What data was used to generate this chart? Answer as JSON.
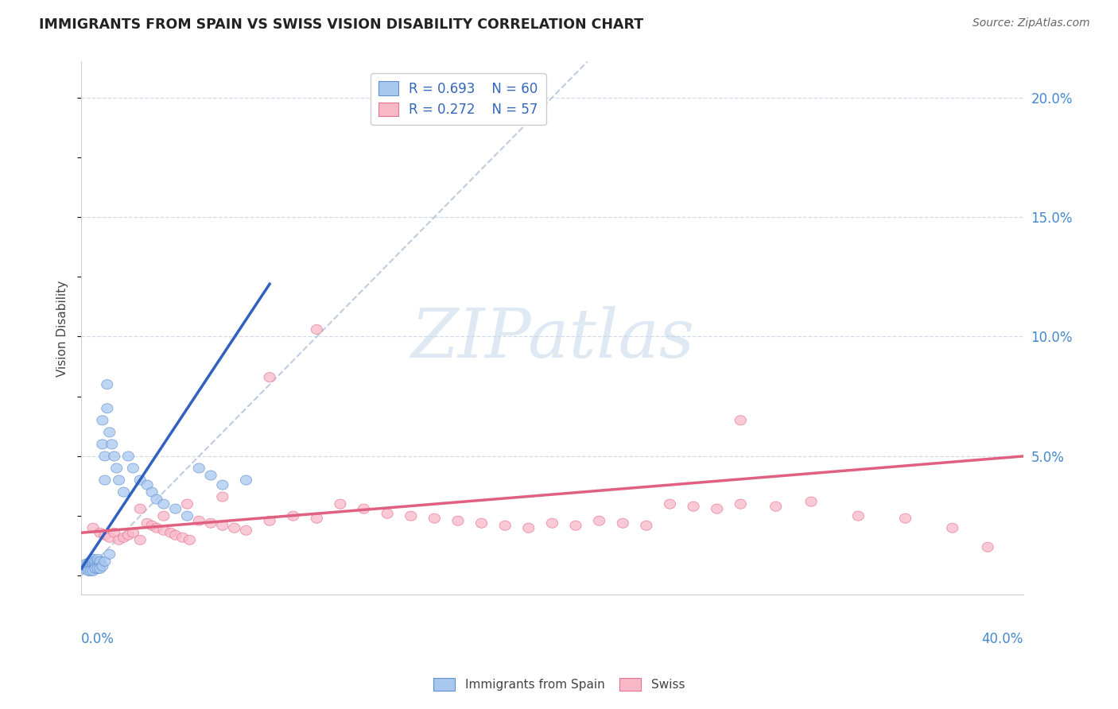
{
  "title": "IMMIGRANTS FROM SPAIN VS SWISS VISION DISABILITY CORRELATION CHART",
  "source": "Source: ZipAtlas.com",
  "ylabel": "Vision Disability",
  "ylabel_right_labels": [
    "20.0%",
    "15.0%",
    "10.0%",
    "5.0%"
  ],
  "ylabel_right_values": [
    0.2,
    0.15,
    0.1,
    0.05
  ],
  "xmin": 0.0,
  "xmax": 0.4,
  "ymin": -0.008,
  "ymax": 0.215,
  "legend_r1": "R = 0.693",
  "legend_n1": "N = 60",
  "legend_r2": "R = 0.272",
  "legend_n2": "N = 57",
  "color_blue_fill": "#A8C8F0",
  "color_blue_edge": "#6090D0",
  "color_pink_fill": "#F8B8C8",
  "color_pink_edge": "#E87090",
  "color_blue_line": "#3060C0",
  "color_pink_line": "#E06080",
  "color_dashed": "#B0C0D8",
  "color_title": "#222222",
  "color_axis_label": "#444444",
  "color_right_label": "#4488CC",
  "color_legend_text_r": "#3366BB",
  "color_legend_text_n": "#33AA33",
  "color_source": "#666666",
  "color_grid": "#D0DDE8",
  "watermark_text": "ZIPatlas",
  "watermark_color": "#C0D4E8",
  "background_color": "#FFFFFF",
  "blue_x": [
    0.001,
    0.002,
    0.002,
    0.003,
    0.003,
    0.003,
    0.004,
    0.004,
    0.004,
    0.004,
    0.005,
    0.005,
    0.005,
    0.005,
    0.005,
    0.006,
    0.006,
    0.006,
    0.006,
    0.007,
    0.007,
    0.007,
    0.007,
    0.008,
    0.008,
    0.008,
    0.009,
    0.009,
    0.01,
    0.01,
    0.011,
    0.011,
    0.012,
    0.013,
    0.014,
    0.015,
    0.016,
    0.018,
    0.02,
    0.022,
    0.025,
    0.028,
    0.03,
    0.032,
    0.035,
    0.04,
    0.045,
    0.05,
    0.055,
    0.06,
    0.003,
    0.004,
    0.005,
    0.006,
    0.007,
    0.008,
    0.009,
    0.01,
    0.012,
    0.07
  ],
  "blue_y": [
    0.003,
    0.004,
    0.005,
    0.003,
    0.004,
    0.005,
    0.003,
    0.004,
    0.005,
    0.006,
    0.003,
    0.004,
    0.005,
    0.006,
    0.007,
    0.003,
    0.004,
    0.005,
    0.006,
    0.004,
    0.005,
    0.006,
    0.007,
    0.004,
    0.005,
    0.006,
    0.055,
    0.065,
    0.04,
    0.05,
    0.07,
    0.08,
    0.06,
    0.055,
    0.05,
    0.045,
    0.04,
    0.035,
    0.05,
    0.045,
    0.04,
    0.038,
    0.035,
    0.032,
    0.03,
    0.028,
    0.025,
    0.045,
    0.042,
    0.038,
    0.002,
    0.002,
    0.002,
    0.003,
    0.003,
    0.003,
    0.004,
    0.006,
    0.009,
    0.04
  ],
  "pink_x": [
    0.005,
    0.008,
    0.01,
    0.012,
    0.014,
    0.016,
    0.018,
    0.02,
    0.022,
    0.025,
    0.028,
    0.03,
    0.032,
    0.035,
    0.038,
    0.04,
    0.043,
    0.046,
    0.05,
    0.055,
    0.06,
    0.065,
    0.07,
    0.08,
    0.09,
    0.1,
    0.11,
    0.12,
    0.13,
    0.14,
    0.15,
    0.16,
    0.17,
    0.18,
    0.19,
    0.2,
    0.21,
    0.22,
    0.23,
    0.24,
    0.25,
    0.26,
    0.27,
    0.28,
    0.295,
    0.31,
    0.33,
    0.35,
    0.37,
    0.385,
    0.025,
    0.035,
    0.045,
    0.06,
    0.08,
    0.1,
    0.28
  ],
  "pink_y": [
    0.02,
    0.018,
    0.017,
    0.016,
    0.018,
    0.015,
    0.016,
    0.017,
    0.018,
    0.015,
    0.022,
    0.021,
    0.02,
    0.019,
    0.018,
    0.017,
    0.016,
    0.015,
    0.023,
    0.022,
    0.021,
    0.02,
    0.019,
    0.023,
    0.025,
    0.024,
    0.03,
    0.028,
    0.026,
    0.025,
    0.024,
    0.023,
    0.022,
    0.021,
    0.02,
    0.022,
    0.021,
    0.023,
    0.022,
    0.021,
    0.03,
    0.029,
    0.028,
    0.03,
    0.029,
    0.031,
    0.025,
    0.024,
    0.02,
    0.012,
    0.028,
    0.025,
    0.03,
    0.033,
    0.083,
    0.103,
    0.065
  ],
  "blue_line_x": [
    0.0,
    0.08
  ],
  "blue_line_y": [
    0.003,
    0.122
  ],
  "pink_line_x": [
    0.0,
    0.4
  ],
  "pink_line_y": [
    0.018,
    0.05
  ],
  "diag_line_x": [
    0.0,
    0.215
  ],
  "diag_line_y": [
    0.0,
    0.215
  ]
}
